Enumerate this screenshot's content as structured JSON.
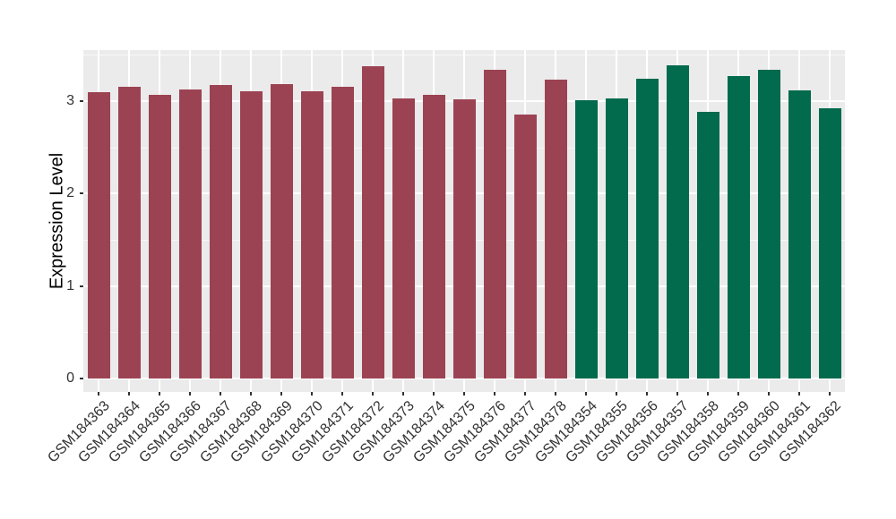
{
  "chart_data": {
    "type": "bar",
    "title": "",
    "xlabel": "",
    "ylabel": "Expression Level",
    "categories": [
      "GSM184363",
      "GSM184364",
      "GSM184365",
      "GSM184366",
      "GSM184367",
      "GSM184368",
      "GSM184369",
      "GSM184370",
      "GSM184371",
      "GSM184372",
      "GSM184373",
      "GSM184374",
      "GSM184375",
      "GSM184376",
      "GSM184377",
      "GSM184378",
      "GSM184354",
      "GSM184355",
      "GSM184356",
      "GSM184357",
      "GSM184358",
      "GSM184359",
      "GSM184360",
      "GSM184361",
      "GSM184362"
    ],
    "values": [
      3.1,
      3.15,
      3.07,
      3.13,
      3.17,
      3.11,
      3.18,
      3.11,
      3.15,
      3.38,
      3.03,
      3.07,
      3.02,
      3.34,
      2.85,
      3.23,
      3.01,
      3.03,
      3.24,
      3.39,
      2.88,
      3.27,
      3.34,
      3.12,
      2.92
    ],
    "bar_groups": [
      "red",
      "red",
      "red",
      "red",
      "red",
      "red",
      "red",
      "red",
      "red",
      "red",
      "red",
      "red",
      "red",
      "red",
      "red",
      "red",
      "green",
      "green",
      "green",
      "green",
      "green",
      "green",
      "green",
      "green",
      "green"
    ],
    "group_colors": {
      "red": "#9C4353",
      "green": "#026A4D"
    },
    "yticks": [
      0,
      1,
      2,
      3
    ],
    "yticks_minor": [
      0.5,
      1.5,
      2.5,
      3.5
    ],
    "ylim": [
      -0.15,
      3.56
    ],
    "grid": "on",
    "legend": "none",
    "panel_bg": "#EBEBEB",
    "grid_color": "#FFFFFF",
    "axis_text_color": "#333333",
    "axis_title_color": "#000000"
  }
}
